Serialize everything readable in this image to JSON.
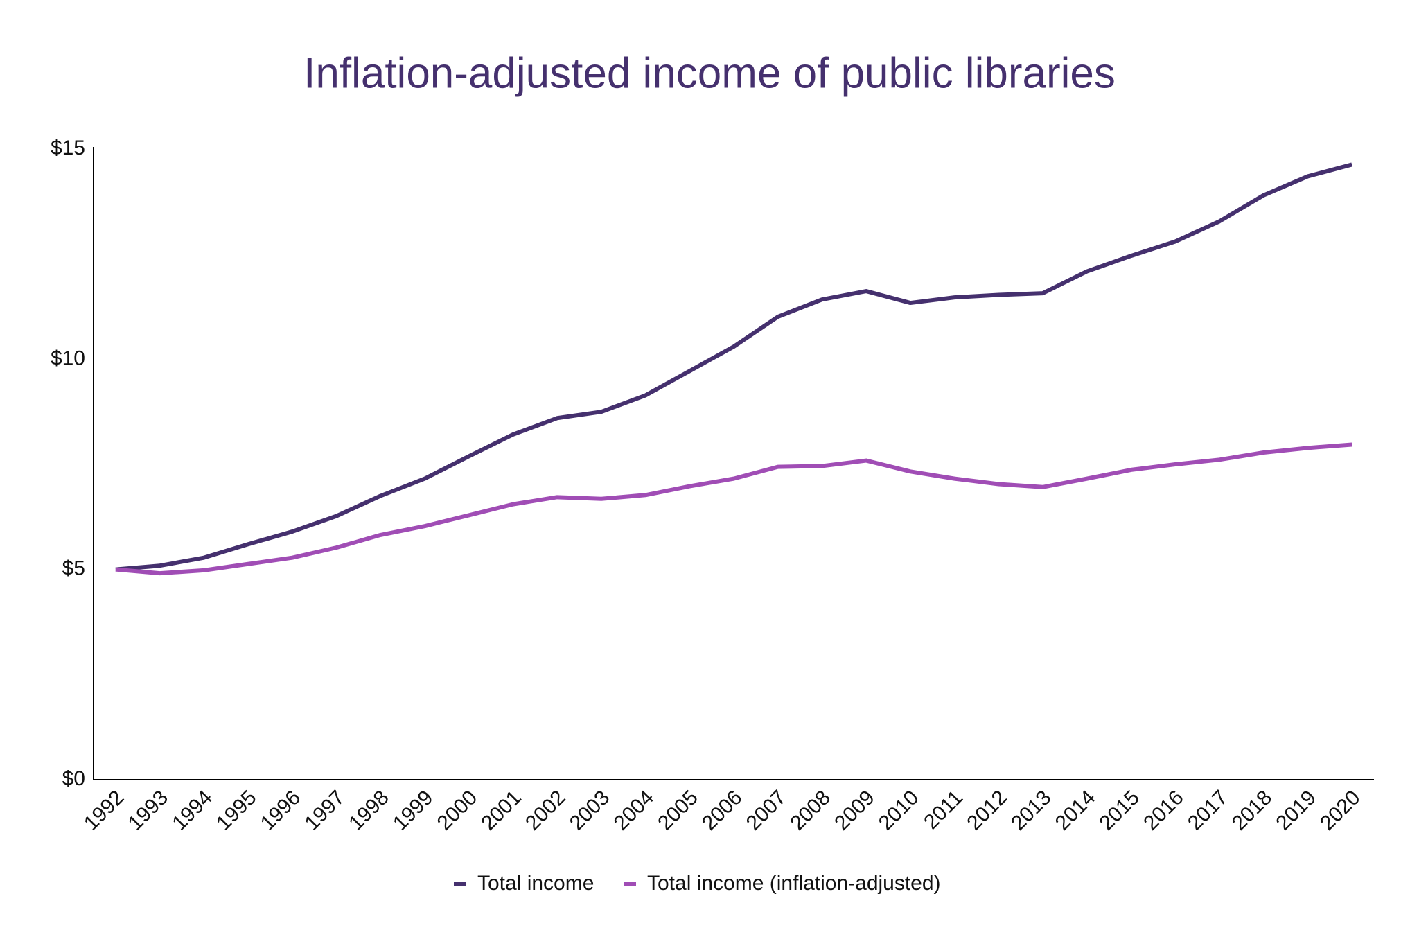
{
  "chart_data": {
    "type": "line",
    "title": "Inflation-adjusted income of public libraries",
    "categories": [
      "1992",
      "1993",
      "1994",
      "1995",
      "1996",
      "1997",
      "1998",
      "1999",
      "2000",
      "2001",
      "2002",
      "2003",
      "2004",
      "2005",
      "2006",
      "2007",
      "2008",
      "2009",
      "2010",
      "2011",
      "2012",
      "2013",
      "2014",
      "2015",
      "2016",
      "2017",
      "2018",
      "2019",
      "2020"
    ],
    "series": [
      {
        "name": "Total income",
        "color": "#45306e",
        "values": [
          5.0,
          5.09,
          5.28,
          5.6,
          5.9,
          6.27,
          6.75,
          7.16,
          7.69,
          8.21,
          8.6,
          8.75,
          9.14,
          9.72,
          10.3,
          11.01,
          11.42,
          11.62,
          11.34,
          11.47,
          11.53,
          11.57,
          12.09,
          12.46,
          12.8,
          13.28,
          13.9,
          14.35,
          14.63
        ]
      },
      {
        "name": "Total income (inflation-adjusted)",
        "color": "#a04db5",
        "values": [
          5.0,
          4.91,
          4.98,
          5.13,
          5.28,
          5.52,
          5.82,
          6.03,
          6.29,
          6.55,
          6.72,
          6.68,
          6.77,
          6.98,
          7.16,
          7.44,
          7.46,
          7.59,
          7.33,
          7.16,
          7.03,
          6.96,
          7.16,
          7.37,
          7.5,
          7.61,
          7.78,
          7.89,
          7.97
        ]
      }
    ],
    "ylim": [
      0,
      15
    ],
    "yticks": [
      {
        "value": 0,
        "label": "$0"
      },
      {
        "value": 5,
        "label": "$5"
      },
      {
        "value": 10,
        "label": "$10"
      },
      {
        "value": 15,
        "label": "$15"
      }
    ],
    "grid": false,
    "legend": "bottom"
  }
}
